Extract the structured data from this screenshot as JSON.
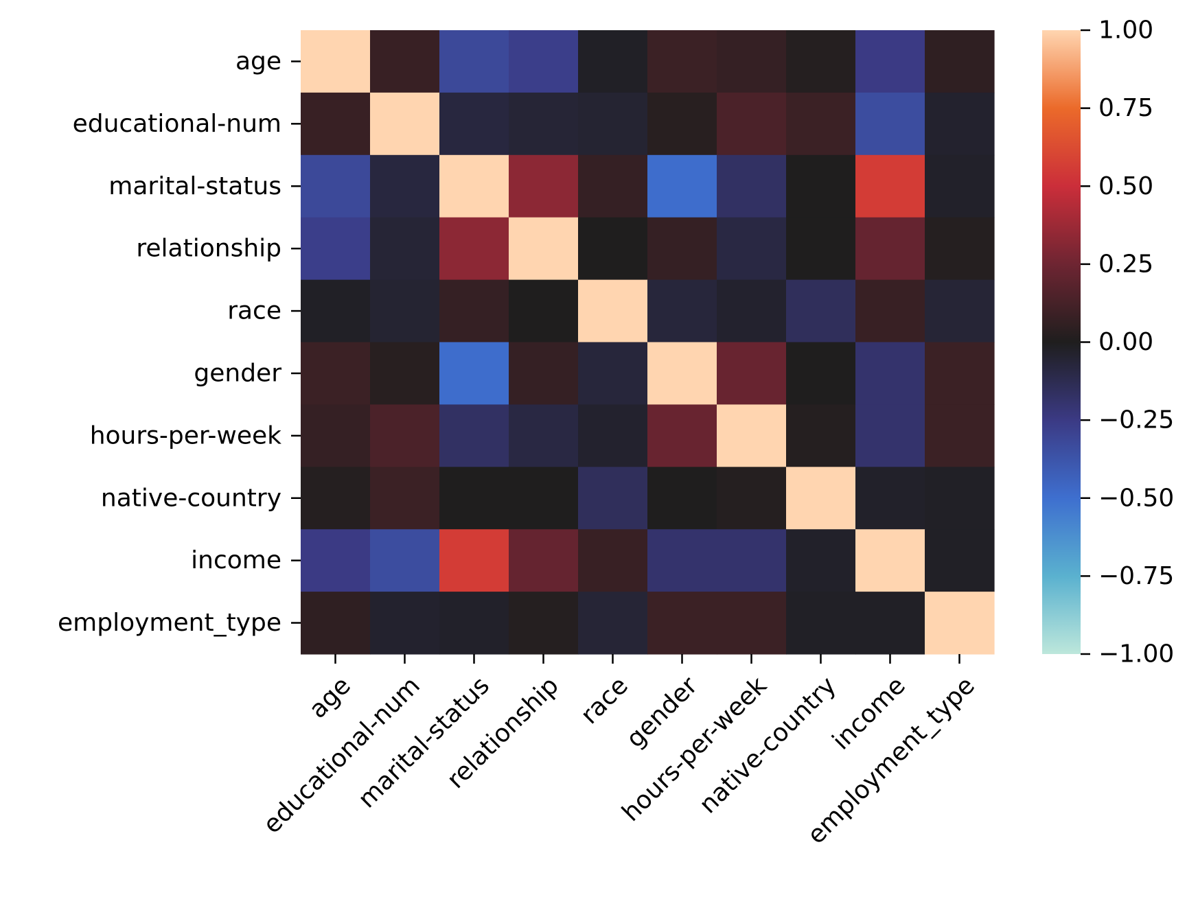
{
  "chart_data": {
    "type": "heatmap",
    "title": "",
    "xlabel": "",
    "ylabel": "",
    "rows": [
      "age",
      "educational-num",
      "marital-status",
      "relationship",
      "race",
      "gender",
      "hours-per-week",
      "native-country",
      "income",
      "employment_type"
    ],
    "columns": [
      "age",
      "educational-num",
      "marital-status",
      "relationship",
      "race",
      "gender",
      "hours-per-week",
      "native-country",
      "income",
      "employment_type"
    ],
    "values": [
      [
        1.0,
        0.08,
        -0.32,
        -0.27,
        -0.02,
        0.09,
        0.07,
        0.02,
        -0.25,
        0.05
      ],
      [
        0.08,
        1.0,
        -0.08,
        -0.06,
        -0.05,
        0.03,
        0.14,
        0.09,
        -0.34,
        -0.04
      ],
      [
        -0.32,
        -0.08,
        1.0,
        0.33,
        0.07,
        -0.49,
        -0.17,
        0.0,
        0.56,
        -0.03
      ],
      [
        -0.27,
        -0.06,
        0.33,
        1.0,
        0.0,
        0.07,
        -0.09,
        0.0,
        0.22,
        0.02
      ],
      [
        -0.02,
        -0.05,
        0.07,
        0.0,
        1.0,
        -0.07,
        -0.04,
        -0.15,
        0.08,
        -0.06
      ],
      [
        0.09,
        0.03,
        -0.49,
        0.07,
        -0.07,
        1.0,
        0.23,
        0.0,
        -0.19,
        0.09
      ],
      [
        0.07,
        0.14,
        -0.17,
        -0.09,
        -0.04,
        0.23,
        1.0,
        0.02,
        -0.19,
        0.09
      ],
      [
        0.02,
        0.09,
        0.0,
        0.0,
        -0.15,
        0.0,
        0.02,
        1.0,
        -0.03,
        -0.02
      ],
      [
        -0.25,
        -0.34,
        0.56,
        0.22,
        0.08,
        -0.19,
        -0.19,
        -0.03,
        1.0,
        -0.02
      ],
      [
        0.05,
        -0.04,
        -0.03,
        0.02,
        -0.06,
        0.09,
        0.09,
        -0.02,
        -0.02,
        1.0
      ]
    ],
    "vmin": -1.0,
    "vmax": 1.0,
    "colormap": "icefire",
    "colorbar_ticks": [
      "1.00",
      "0.75",
      "0.50",
      "0.25",
      "0.00",
      "−0.25",
      "−0.50",
      "−0.75",
      "−1.00"
    ],
    "colorbar_tick_values": [
      1.0,
      0.75,
      0.5,
      0.25,
      0.0,
      -0.25,
      -0.5,
      -0.75,
      -1.0
    ],
    "colorbar_placement": "right",
    "grid": false,
    "colormap_stops": [
      {
        "v": -1.0,
        "c": "#bde7db"
      },
      {
        "v": -0.75,
        "c": "#5ab1cf"
      },
      {
        "v": -0.5,
        "c": "#3e6fcf"
      },
      {
        "v": -0.25,
        "c": "#3b3a84"
      },
      {
        "v": 0.0,
        "c": "#1f1e1e"
      },
      {
        "v": 0.25,
        "c": "#6e2532"
      },
      {
        "v": 0.5,
        "c": "#cb2e3a"
      },
      {
        "v": 0.75,
        "c": "#eb6a2a"
      },
      {
        "v": 1.0,
        "c": "#ffd5b0"
      }
    ]
  }
}
